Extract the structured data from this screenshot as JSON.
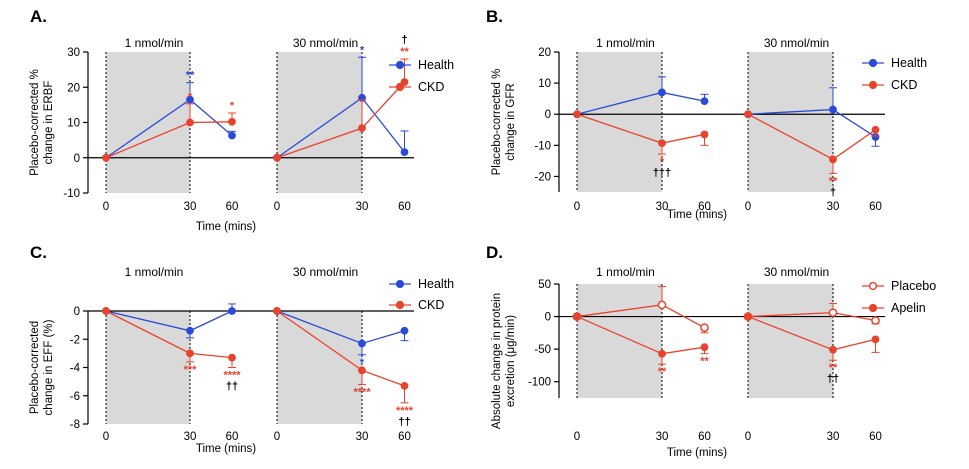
{
  "colors": {
    "health": "#2a4bd7",
    "ckd": "#e8432c",
    "shade": "#d9d9d9",
    "axis": "#000000",
    "dagger": "#000000"
  },
  "chart_data": [
    {
      "type": "line",
      "panel": "A.",
      "ylabel_lines": [
        "Placebo-corrected %",
        "change in ERBF"
      ],
      "xlabel": "Time (mins)",
      "ylim": [
        -10,
        30
      ],
      "yticks": [
        "30",
        "20",
        "10",
        "0",
        "-10"
      ],
      "ytick_values": [
        30,
        20,
        10,
        0,
        -10
      ],
      "zero_line": 0,
      "segments": [
        {
          "dose_label": "1 nmol/min",
          "x_ticks": [
            "0",
            "30",
            "60"
          ],
          "series": [
            {
              "name": "Health",
              "values": [
                0,
                16.5,
                6.3
              ],
              "error": [
                0,
                4.8,
                1.2
              ],
              "sig": [
                {
                  "index": 1,
                  "text": "**",
                  "pos": "above"
                }
              ]
            },
            {
              "name": "CKD",
              "values": [
                0,
                10,
                10.2
              ],
              "error": [
                0,
                5.3,
                2.5
              ],
              "sig": [
                {
                  "index": 1,
                  "text": "*",
                  "pos": "above"
                },
                {
                  "index": 2,
                  "text": "*",
                  "pos": "above"
                }
              ]
            }
          ]
        },
        {
          "dose_label": "30 nmol/min",
          "x_ticks": [
            "0",
            "30",
            "60"
          ],
          "series": [
            {
              "name": "Health",
              "values": [
                0,
                17,
                1.6
              ],
              "error": [
                0,
                11.5,
                6
              ],
              "sig": [
                {
                  "index": 1,
                  "text": "*",
                  "pos": "above"
                }
              ]
            },
            {
              "name": "CKD",
              "values": [
                0,
                8.4,
                21.5
              ],
              "error": [
                0,
                8,
                6.5
              ],
              "sig": [
                {
                  "index": 2,
                  "text": "**",
                  "pos": "above"
                }
              ],
              "daggers": [
                {
                  "index": 2,
                  "text": "†",
                  "pos": "above"
                }
              ]
            }
          ]
        }
      ],
      "legend": [
        {
          "name": "Health",
          "marker": "filled-circle",
          "color_key": "health"
        },
        {
          "name": "CKD",
          "marker": "filled-circle",
          "color_key": "ckd"
        }
      ]
    },
    {
      "type": "line",
      "panel": "B.",
      "ylabel_lines": [
        "Placebo-corrected %",
        "change in GFR"
      ],
      "xlabel": "Time (mins)",
      "ylim": [
        -25,
        20
      ],
      "yticks": [
        "20",
        "10",
        "0",
        "-10",
        "-20"
      ],
      "ytick_values": [
        20,
        10,
        0,
        -10,
        -20
      ],
      "zero_line": 0,
      "segments": [
        {
          "dose_label": "1 nmol/min",
          "x_ticks": [
            "0",
            "30",
            "60"
          ],
          "series": [
            {
              "name": "Health",
              "values": [
                0,
                7,
                4.2
              ],
              "error": [
                0,
                5,
                2.2
              ],
              "sig": []
            },
            {
              "name": "CKD",
              "values": [
                0,
                -9.3,
                -6.5
              ],
              "error": [
                0,
                3.5,
                3.5
              ],
              "sig": [
                {
                  "index": 1,
                  "text": "*",
                  "pos": "below"
                }
              ],
              "daggers": [
                {
                  "index": 1,
                  "text": "†††",
                  "pos": "below"
                }
              ]
            }
          ]
        },
        {
          "dose_label": "30 nmol/min",
          "x_ticks": [
            "0",
            "30",
            "60"
          ],
          "series": [
            {
              "name": "Health",
              "values": [
                0,
                1.5,
                -7.3
              ],
              "error": [
                0,
                7,
                3
              ],
              "sig": []
            },
            {
              "name": "CKD",
              "values": [
                0,
                -14.5,
                -5
              ],
              "error": [
                0,
                4.5,
                2
              ],
              "sig": [
                {
                  "index": 1,
                  "text": "**",
                  "pos": "below"
                }
              ],
              "daggers": [
                {
                  "index": 1,
                  "text": "†",
                  "pos": "below"
                }
              ]
            }
          ]
        }
      ],
      "legend": [
        {
          "name": "Health",
          "marker": "filled-circle",
          "color_key": "health"
        },
        {
          "name": "CKD",
          "marker": "filled-circle",
          "color_key": "ckd"
        }
      ]
    },
    {
      "type": "line",
      "panel": "C.",
      "ylabel_lines": [
        "Placebo-corrected",
        "change in EFF (%)"
      ],
      "xlabel": "Time (mins)",
      "ylim": [
        -8,
        0
      ],
      "yticks": [
        "0",
        "-2",
        "-4",
        "-6",
        "-8"
      ],
      "ytick_values": [
        0,
        -2,
        -4,
        -6,
        -8
      ],
      "zero_line": 0,
      "segments": [
        {
          "dose_label": "1 nmol/min",
          "x_ticks": [
            "0",
            "30",
            "60"
          ],
          "series": [
            {
              "name": "Health",
              "values": [
                0,
                -1.4,
                0
              ],
              "error": [
                0,
                0.5,
                0.5
              ],
              "sig": []
            },
            {
              "name": "CKD",
              "values": [
                0,
                -3,
                -3.3
              ],
              "error": [
                0,
                0.6,
                0.7
              ],
              "sig": [
                {
                  "index": 1,
                  "text": "***",
                  "pos": "below"
                },
                {
                  "index": 2,
                  "text": "****",
                  "pos": "below"
                }
              ],
              "daggers": [
                {
                  "index": 2,
                  "text": "††",
                  "pos": "below"
                }
              ]
            }
          ]
        },
        {
          "dose_label": "30 nmol/min",
          "x_ticks": [
            "0",
            "30",
            "60"
          ],
          "series": [
            {
              "name": "Health",
              "values": [
                0,
                -2.3,
                -1.4
              ],
              "error": [
                0,
                0.8,
                0.7
              ],
              "sig": [
                {
                  "index": 1,
                  "text": "*",
                  "pos": "below"
                }
              ]
            },
            {
              "name": "CKD",
              "values": [
                0,
                -4.2,
                -5.3
              ],
              "error": [
                0,
                1,
                1.2
              ],
              "sig": [
                {
                  "index": 1,
                  "text": "****",
                  "pos": "below"
                },
                {
                  "index": 2,
                  "text": "****",
                  "pos": "below"
                }
              ],
              "daggers": [
                {
                  "index": 2,
                  "text": "††",
                  "pos": "below"
                }
              ]
            }
          ]
        }
      ],
      "legend": [
        {
          "name": "Health",
          "marker": "filled-circle",
          "color_key": "health"
        },
        {
          "name": "CKD",
          "marker": "filled-circle",
          "color_key": "ckd"
        }
      ]
    },
    {
      "type": "line",
      "panel": "D.",
      "ylabel_lines": [
        "Absolute change in protein",
        "excretion (μg/min)"
      ],
      "xlabel": "Time (mins)",
      "ylim": [
        -125,
        50
      ],
      "yticks": [
        "50",
        "0",
        "-50",
        "-100"
      ],
      "ytick_values": [
        50,
        0,
        -50,
        -100
      ],
      "zero_line": 0,
      "segments": [
        {
          "dose_label": "1 nmol/min",
          "x_ticks": [
            "0",
            "30",
            "60"
          ],
          "series": [
            {
              "name": "Placebo",
              "values": [
                0,
                18,
                -17
              ],
              "error": [
                0,
                28,
                8
              ],
              "sig": []
            },
            {
              "name": "Apelin",
              "values": [
                0,
                -57,
                -47
              ],
              "error": [
                0,
                16,
                10
              ],
              "sig": [
                {
                  "index": 1,
                  "text": "**",
                  "pos": "below"
                },
                {
                  "index": 2,
                  "text": "**",
                  "pos": "below"
                }
              ]
            }
          ]
        },
        {
          "dose_label": "30 nmol/min",
          "x_ticks": [
            "0",
            "30",
            "60"
          ],
          "series": [
            {
              "name": "Placebo",
              "values": [
                0,
                6,
                -6
              ],
              "error": [
                0,
                14,
                5
              ],
              "sig": []
            },
            {
              "name": "Apelin",
              "values": [
                0,
                -51,
                -35
              ],
              "error": [
                0,
                16,
                20
              ],
              "sig": [
                {
                  "index": 1,
                  "text": "**",
                  "pos": "below"
                }
              ],
              "daggers": [
                {
                  "index": 1,
                  "text": "††",
                  "pos": "below"
                }
              ]
            }
          ]
        }
      ],
      "legend": [
        {
          "name": "Placebo",
          "marker": "open-circle",
          "color_key": "ckd"
        },
        {
          "name": "Apelin",
          "marker": "filled-circle",
          "color_key": "ckd"
        }
      ]
    }
  ]
}
